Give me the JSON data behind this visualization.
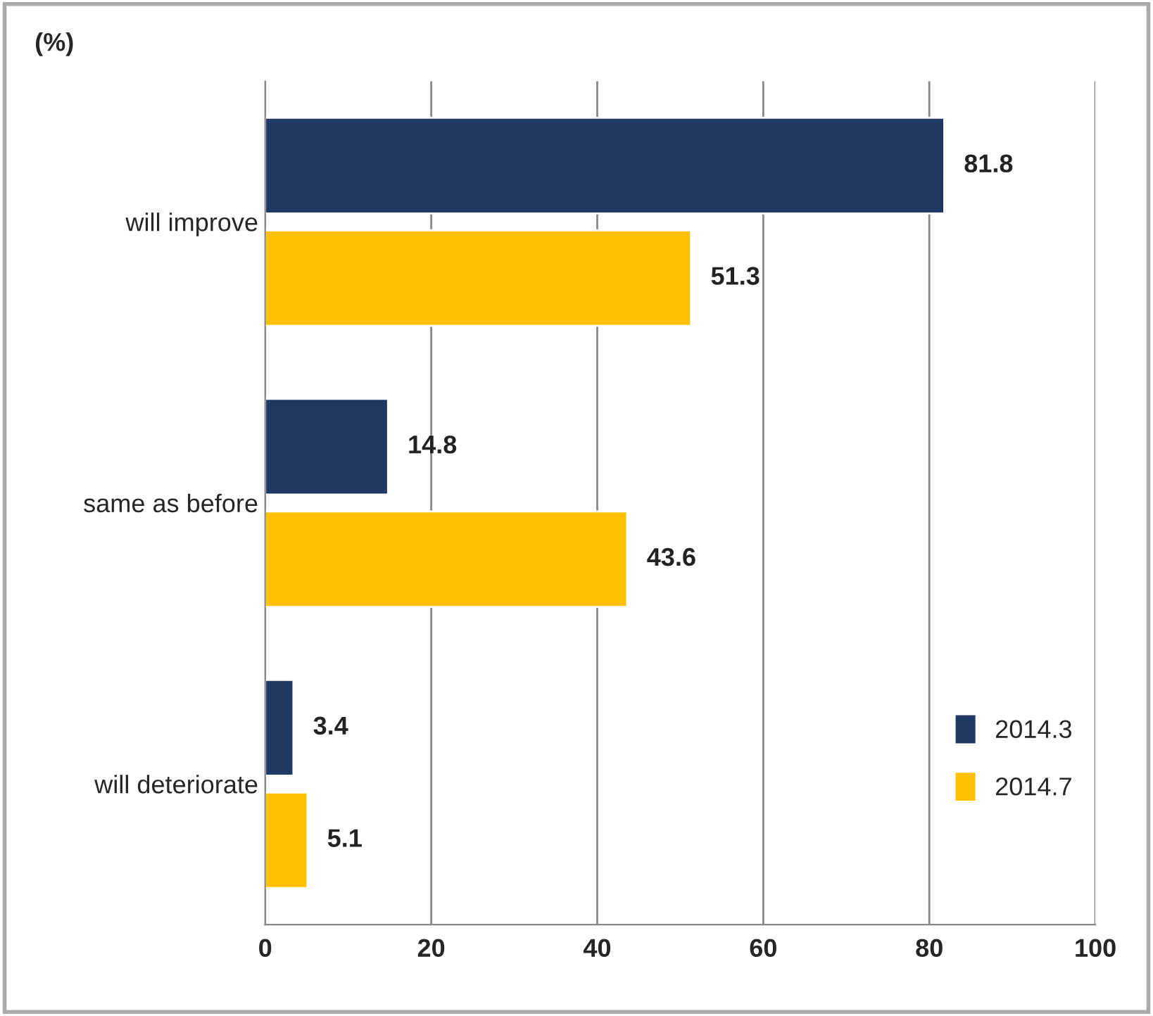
{
  "chart_data": {
    "type": "bar",
    "orientation": "horizontal",
    "ylabel": "(%)",
    "categories": [
      "will improve",
      "same as before",
      "will deteriorate"
    ],
    "series": [
      {
        "name": "2014.3",
        "color": "#1f3864",
        "values": [
          81.8,
          14.8,
          3.4
        ]
      },
      {
        "name": "2014.7",
        "color": "#ffc000",
        "values": [
          51.3,
          43.6,
          5.1
        ]
      }
    ],
    "xlim": [
      0,
      100
    ],
    "xticks": [
      0,
      20,
      40,
      60,
      80,
      100
    ],
    "grid": "x",
    "legend": "bottom right",
    "data_labels": true
  }
}
